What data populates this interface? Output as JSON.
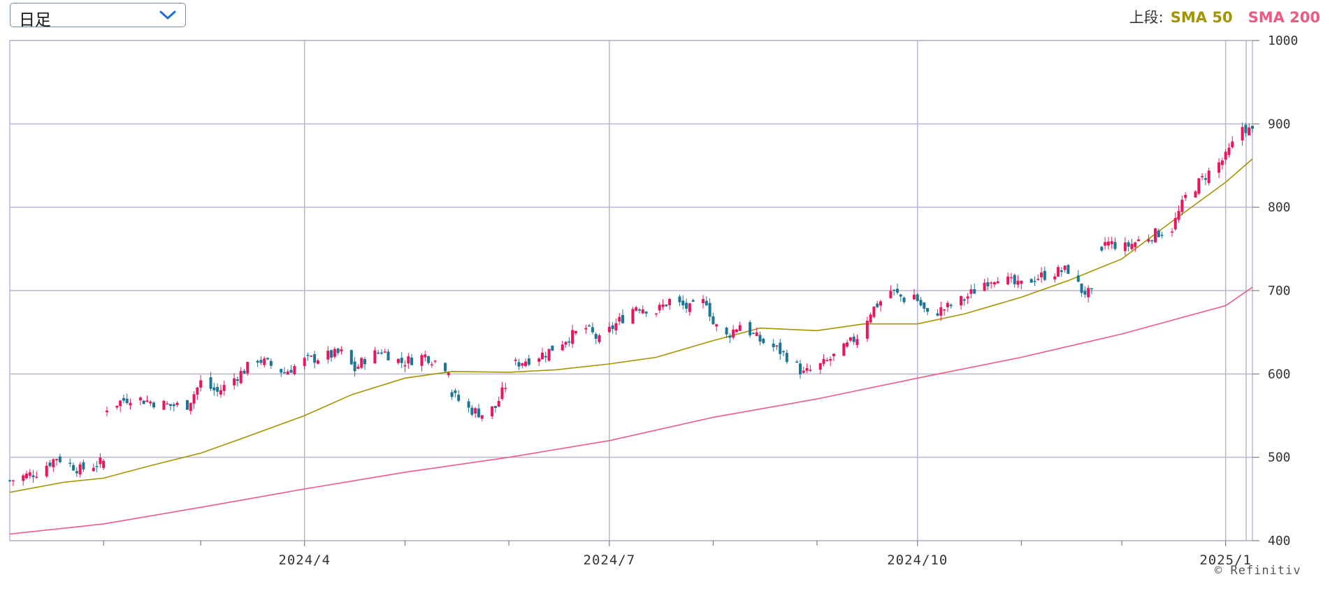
{
  "controls": {
    "period_label": "日足",
    "dropdown_icon": "chevron-down-icon"
  },
  "legend": {
    "prefix": "上段:",
    "items": [
      {
        "label": "SMA 50",
        "color": "#a49400"
      },
      {
        "label": "SMA 200",
        "color": "#ee5a82"
      }
    ]
  },
  "credit": "© Refinitiv",
  "colors": {
    "up": "#e8175d",
    "down": "#1a7596",
    "grid": "#b8b6d2",
    "sma50": "#a49400",
    "sma200": "#ee5a82"
  },
  "chart_data": {
    "type": "candlestick",
    "ylim": [
      400,
      1000
    ],
    "yticks": [
      400,
      500,
      600,
      700,
      800,
      900,
      1000
    ],
    "xlim": [
      "2024-01-04",
      "2025-01-09"
    ],
    "xtick_labels": [
      {
        "date": "2024-04-01",
        "label": "2024/4"
      },
      {
        "date": "2024-07-01",
        "label": "2024/7"
      },
      {
        "date": "2024-10-01",
        "label": "2024/10"
      },
      {
        "date": "2025-01-01",
        "label": "2025/1"
      }
    ],
    "minor_ticks": [
      "2024-02-01",
      "2024-03-01",
      "2024-05-01",
      "2024-06-01",
      "2024-08-01",
      "2024-09-01",
      "2024-11-01",
      "2024-12-01"
    ],
    "close_path": [
      [
        "2024-01-04",
        472
      ],
      [
        "2024-01-12",
        482
      ],
      [
        "2024-01-18",
        500
      ],
      [
        "2024-01-25",
        485
      ],
      [
        "2024-02-01",
        495
      ],
      [
        "2024-02-02",
        560
      ],
      [
        "2024-02-09",
        572
      ],
      [
        "2024-02-16",
        566
      ],
      [
        "2024-02-21",
        562
      ],
      [
        "2024-02-26",
        563
      ],
      [
        "2024-03-01",
        590
      ],
      [
        "2024-03-06",
        578
      ],
      [
        "2024-03-12",
        598
      ],
      [
        "2024-03-18",
        618
      ],
      [
        "2024-03-26",
        602
      ],
      [
        "2024-04-01",
        616
      ],
      [
        "2024-04-08",
        622
      ],
      [
        "2024-04-12",
        625
      ],
      [
        "2024-04-16",
        605
      ],
      [
        "2024-04-19",
        618
      ],
      [
        "2024-04-24",
        628
      ],
      [
        "2024-04-30",
        614
      ],
      [
        "2024-05-07",
        622
      ],
      [
        "2024-05-14",
        607
      ],
      [
        "2024-05-15",
        575
      ],
      [
        "2024-05-20",
        558
      ],
      [
        "2024-05-24",
        552
      ],
      [
        "2024-05-28",
        560
      ],
      [
        "2024-06-03",
        612
      ],
      [
        "2024-06-07",
        618
      ],
      [
        "2024-06-12",
        625
      ],
      [
        "2024-06-18",
        642
      ],
      [
        "2024-06-24",
        655
      ],
      [
        "2024-06-28",
        640
      ],
      [
        "2024-07-03",
        660
      ],
      [
        "2024-07-09",
        682
      ],
      [
        "2024-07-15",
        675
      ],
      [
        "2024-07-19",
        688
      ],
      [
        "2024-07-25",
        678
      ],
      [
        "2024-07-30",
        688
      ],
      [
        "2024-08-01",
        660
      ],
      [
        "2024-08-05",
        645
      ],
      [
        "2024-08-09",
        660
      ],
      [
        "2024-08-15",
        640
      ],
      [
        "2024-08-20",
        630
      ],
      [
        "2024-08-24",
        618
      ],
      [
        "2024-08-28",
        600
      ],
      [
        "2024-09-03",
        612
      ],
      [
        "2024-09-09",
        630
      ],
      [
        "2024-09-13",
        645
      ],
      [
        "2024-09-17",
        675
      ],
      [
        "2024-09-23",
        700
      ],
      [
        "2024-09-27",
        690
      ],
      [
        "2024-09-30",
        695
      ],
      [
        "2024-10-04",
        670
      ],
      [
        "2024-10-10",
        680
      ],
      [
        "2024-10-15",
        690
      ],
      [
        "2024-10-21",
        710
      ],
      [
        "2024-10-25",
        718
      ],
      [
        "2024-10-31",
        705
      ],
      [
        "2024-11-05",
        715
      ],
      [
        "2024-11-11",
        722
      ],
      [
        "2024-11-15",
        725
      ],
      [
        "2024-11-19",
        700
      ],
      [
        "2024-11-22",
        695
      ],
      [
        "2024-11-26",
        758
      ],
      [
        "2024-12-02",
        752
      ],
      [
        "2024-12-06",
        760
      ],
      [
        "2024-12-11",
        768
      ],
      [
        "2024-12-16",
        775
      ],
      [
        "2024-12-20",
        812
      ],
      [
        "2024-12-26",
        838
      ],
      [
        "2025-01-01",
        860
      ],
      [
        "2025-01-06",
        897
      ],
      [
        "2025-01-09",
        890
      ]
    ],
    "series": [
      {
        "name": "SMA 50",
        "points": [
          [
            "2024-01-04",
            458
          ],
          [
            "2024-01-20",
            470
          ],
          [
            "2024-02-01",
            475
          ],
          [
            "2024-02-15",
            490
          ],
          [
            "2024-03-01",
            505
          ],
          [
            "2024-03-15",
            525
          ],
          [
            "2024-04-01",
            550
          ],
          [
            "2024-04-15",
            575
          ],
          [
            "2024-05-01",
            595
          ],
          [
            "2024-05-15",
            603
          ],
          [
            "2024-06-01",
            602
          ],
          [
            "2024-06-15",
            605
          ],
          [
            "2024-07-01",
            612
          ],
          [
            "2024-07-15",
            620
          ],
          [
            "2024-08-01",
            640
          ],
          [
            "2024-08-15",
            655
          ],
          [
            "2024-09-01",
            652
          ],
          [
            "2024-09-15",
            660
          ],
          [
            "2024-10-01",
            660
          ],
          [
            "2024-10-15",
            672
          ],
          [
            "2024-11-01",
            692
          ],
          [
            "2024-11-15",
            712
          ],
          [
            "2024-12-01",
            738
          ],
          [
            "2024-12-15",
            780
          ],
          [
            "2025-01-01",
            830
          ],
          [
            "2025-01-09",
            858
          ]
        ]
      },
      {
        "name": "SMA 200",
        "points": [
          [
            "2024-01-04",
            408
          ],
          [
            "2024-02-01",
            420
          ],
          [
            "2024-03-01",
            440
          ],
          [
            "2024-04-01",
            462
          ],
          [
            "2024-05-01",
            482
          ],
          [
            "2024-06-01",
            500
          ],
          [
            "2024-07-01",
            520
          ],
          [
            "2024-08-01",
            548
          ],
          [
            "2024-09-01",
            570
          ],
          [
            "2024-10-01",
            595
          ],
          [
            "2024-11-01",
            620
          ],
          [
            "2024-12-01",
            648
          ],
          [
            "2025-01-01",
            682
          ],
          [
            "2025-01-09",
            704
          ]
        ]
      }
    ]
  }
}
